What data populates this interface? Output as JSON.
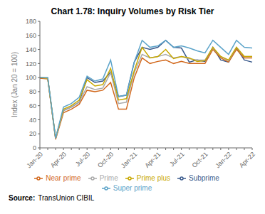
{
  "chart_data": {
    "type": "line",
    "title": "Chart 1.78: Inquiry Volumes by Risk Tier",
    "y_label": "Index (Jan 20 = 100)",
    "annotations": [
      "Source:",
      "TransUnion CIBIL"
    ],
    "categories": [
      "Jan-20",
      null,
      null,
      "Apr-20",
      null,
      null,
      "Jul-20",
      null,
      null,
      "Oct-20",
      null,
      null,
      "Jan-21",
      null,
      null,
      "Apr-21",
      null,
      null,
      "Jul-21",
      null,
      null,
      "Oct-21",
      null,
      null,
      "Jan-22",
      null,
      null,
      "Apr-22"
    ],
    "series": [
      {
        "name": "Subprime",
        "color": "#3A5A8C",
        "values": [
          100,
          99,
          13,
          53,
          58,
          65,
          100,
          93,
          95,
          108,
          73,
          75,
          122,
          143,
          140,
          143,
          153,
          143,
          142,
          122,
          125,
          123,
          143,
          125,
          122,
          142,
          125,
          122
        ]
      },
      {
        "name": "Near prime",
        "color": "#D2691E",
        "values": [
          99,
          98,
          12,
          50,
          55,
          62,
          82,
          80,
          82,
          93,
          55,
          55,
          100,
          128,
          120,
          123,
          125,
          120,
          123,
          120,
          120,
          120,
          140,
          128,
          122,
          140,
          128,
          128
        ]
      },
      {
        "name": "Prime",
        "color": "#AAAAAA",
        "values": [
          100,
          99,
          13,
          53,
          58,
          65,
          87,
          83,
          85,
          107,
          63,
          65,
          107,
          133,
          128,
          130,
          133,
          128,
          130,
          127,
          125,
          125,
          142,
          130,
          124,
          143,
          130,
          130
        ]
      },
      {
        "name": "Prime plus",
        "color": "#C8A800",
        "values": [
          100,
          99,
          14,
          55,
          60,
          68,
          97,
          88,
          90,
          113,
          68,
          70,
          110,
          143,
          128,
          130,
          140,
          127,
          130,
          128,
          123,
          124,
          143,
          130,
          125,
          143,
          130,
          130
        ]
      },
      {
        "name": "Super prime",
        "color": "#5BA3C9",
        "values": [
          100,
          100,
          14,
          58,
          63,
          72,
          102,
          95,
          98,
          125,
          73,
          75,
          122,
          153,
          143,
          145,
          153,
          143,
          145,
          142,
          138,
          135,
          153,
          143,
          133,
          153,
          143,
          142
        ]
      }
    ],
    "ylim": [
      0,
      180
    ],
    "yticks": [
      0,
      20,
      40,
      60,
      80,
      100,
      120,
      140,
      160,
      180
    ],
    "grid": false,
    "legend": "bottom"
  }
}
